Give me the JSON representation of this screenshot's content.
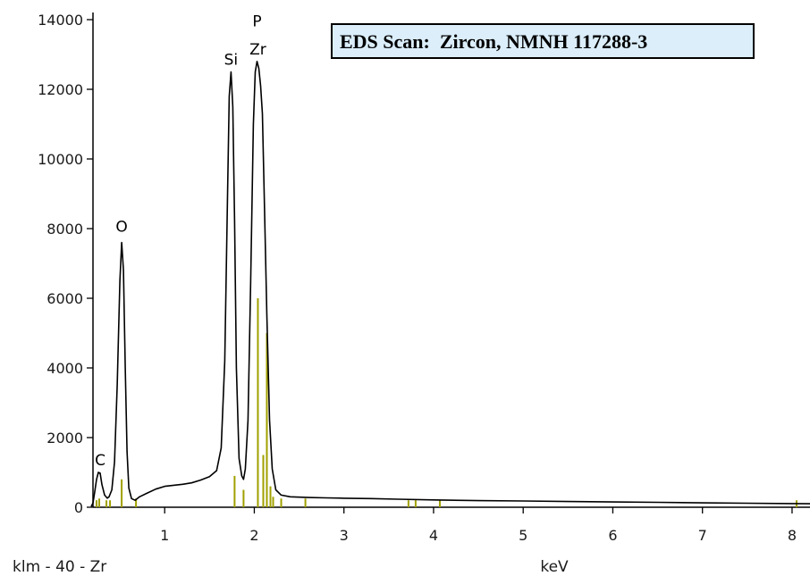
{
  "chart_data": {
    "type": "line",
    "title": "EDS Scan:  Zircon, NMNH 117288-3",
    "xlabel": "keV",
    "ylabel": "",
    "footer_left": "klm - 40 - Zr",
    "xlim": [
      0.2,
      8.2
    ],
    "ylim": [
      0,
      14000
    ],
    "x_ticks": [
      1,
      2,
      3,
      4,
      5,
      6,
      7,
      8
    ],
    "y_ticks": [
      0,
      2000,
      4000,
      6000,
      8000,
      10000,
      12000,
      14000
    ],
    "grid": false,
    "spectrum_color": "#000000",
    "marker_color": "#a0a000",
    "peak_labels": [
      {
        "text": "C",
        "x": 0.28,
        "y": 1000
      },
      {
        "text": "O",
        "x": 0.52,
        "y": 7700
      },
      {
        "text": "Si",
        "x": 1.74,
        "y": 12500
      },
      {
        "text": "Zr",
        "x": 2.04,
        "y": 12800
      },
      {
        "text": "P",
        "x": 2.03,
        "y": 13600
      }
    ],
    "element_markers": [
      {
        "x": 0.24,
        "y": 200
      },
      {
        "x": 0.27,
        "y": 250
      },
      {
        "x": 0.35,
        "y": 200
      },
      {
        "x": 0.39,
        "y": 200
      },
      {
        "x": 0.52,
        "y": 800
      },
      {
        "x": 0.68,
        "y": 250
      },
      {
        "x": 1.78,
        "y": 900
      },
      {
        "x": 1.88,
        "y": 500
      },
      {
        "x": 2.04,
        "y": 6000
      },
      {
        "x": 2.1,
        "y": 1500
      },
      {
        "x": 2.14,
        "y": 5000
      },
      {
        "x": 2.18,
        "y": 600
      },
      {
        "x": 2.21,
        "y": 300
      },
      {
        "x": 2.3,
        "y": 250
      },
      {
        "x": 2.57,
        "y": 250
      },
      {
        "x": 3.72,
        "y": 200
      },
      {
        "x": 3.8,
        "y": 200
      },
      {
        "x": 4.07,
        "y": 200
      },
      {
        "x": 8.05,
        "y": 200
      }
    ],
    "spectrum": [
      [
        0.18,
        20
      ],
      [
        0.2,
        120
      ],
      [
        0.22,
        450
      ],
      [
        0.24,
        800
      ],
      [
        0.26,
        1000
      ],
      [
        0.28,
        980
      ],
      [
        0.3,
        650
      ],
      [
        0.33,
        350
      ],
      [
        0.36,
        260
      ],
      [
        0.38,
        300
      ],
      [
        0.41,
        500
      ],
      [
        0.44,
        1300
      ],
      [
        0.47,
        3500
      ],
      [
        0.5,
        6500
      ],
      [
        0.52,
        7600
      ],
      [
        0.54,
        6800
      ],
      [
        0.56,
        4000
      ],
      [
        0.58,
        1600
      ],
      [
        0.6,
        550
      ],
      [
        0.63,
        250
      ],
      [
        0.67,
        200
      ],
      [
        0.72,
        300
      ],
      [
        0.8,
        400
      ],
      [
        0.9,
        520
      ],
      [
        1.0,
        600
      ],
      [
        1.1,
        630
      ],
      [
        1.2,
        660
      ],
      [
        1.3,
        700
      ],
      [
        1.4,
        780
      ],
      [
        1.5,
        880
      ],
      [
        1.58,
        1050
      ],
      [
        1.63,
        1700
      ],
      [
        1.67,
        4200
      ],
      [
        1.7,
        8800
      ],
      [
        1.72,
        11800
      ],
      [
        1.74,
        12500
      ],
      [
        1.76,
        11500
      ],
      [
        1.78,
        8200
      ],
      [
        1.8,
        4000
      ],
      [
        1.83,
        1400
      ],
      [
        1.86,
        900
      ],
      [
        1.88,
        800
      ],
      [
        1.9,
        1100
      ],
      [
        1.93,
        2500
      ],
      [
        1.96,
        6500
      ],
      [
        1.99,
        11000
      ],
      [
        2.01,
        12500
      ],
      [
        2.03,
        12800
      ],
      [
        2.05,
        12600
      ],
      [
        2.07,
        12100
      ],
      [
        2.09,
        11300
      ],
      [
        2.11,
        9000
      ],
      [
        2.14,
        5500
      ],
      [
        2.17,
        2500
      ],
      [
        2.2,
        1100
      ],
      [
        2.24,
        500
      ],
      [
        2.3,
        350
      ],
      [
        2.4,
        300
      ],
      [
        2.6,
        280
      ],
      [
        2.8,
        270
      ],
      [
        3.0,
        260
      ],
      [
        3.3,
        250
      ],
      [
        3.6,
        230
      ],
      [
        4.0,
        210
      ],
      [
        4.5,
        190
      ],
      [
        5.0,
        180
      ],
      [
        5.5,
        165
      ],
      [
        6.0,
        150
      ],
      [
        6.5,
        140
      ],
      [
        7.0,
        125
      ],
      [
        7.5,
        115
      ],
      [
        8.0,
        105
      ],
      [
        8.2,
        100
      ]
    ]
  }
}
